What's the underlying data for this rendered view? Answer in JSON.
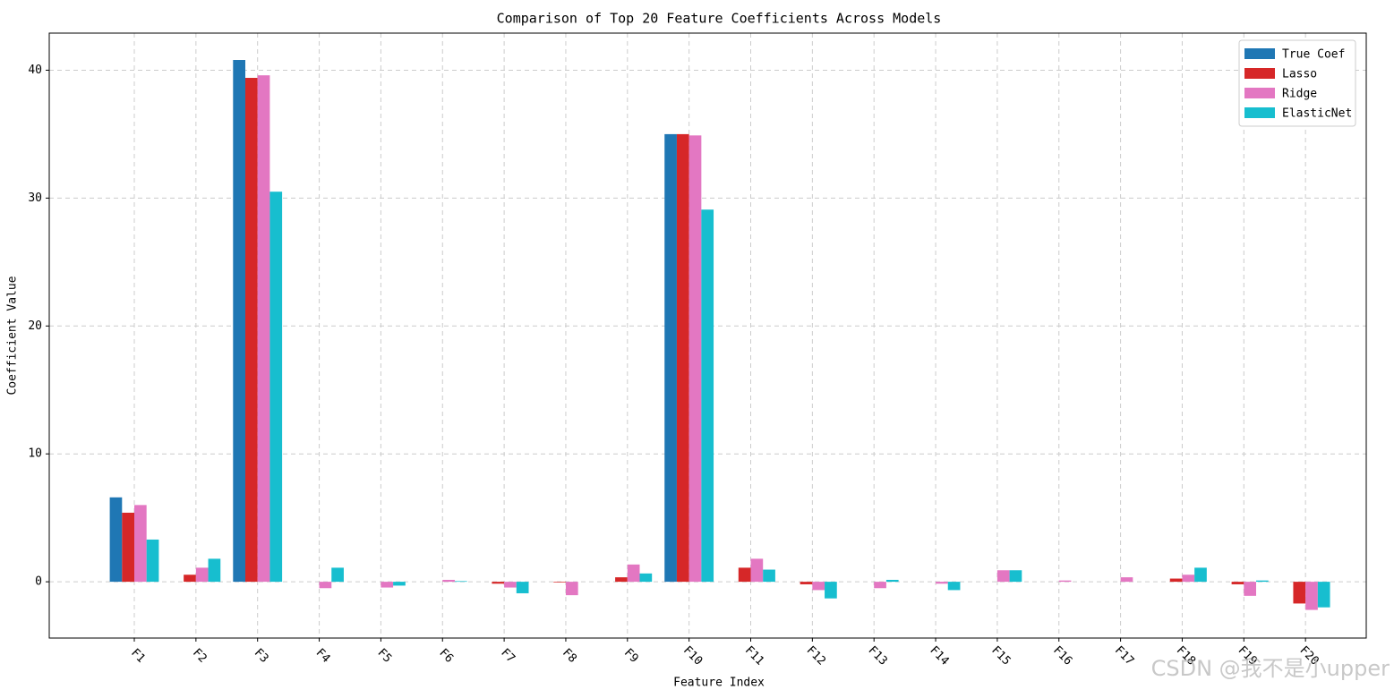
{
  "chart_data": {
    "type": "bar",
    "title": "Comparison of Top 20 Feature Coefficients Across Models",
    "xlabel": "Feature Index",
    "ylabel": "Coefficient Value",
    "categories": [
      "F1",
      "F2",
      "F3",
      "F4",
      "F5",
      "F6",
      "F7",
      "F8",
      "F9",
      "F10",
      "F11",
      "F12",
      "F13",
      "F14",
      "F15",
      "F16",
      "F17",
      "F18",
      "F19",
      "F20"
    ],
    "series": [
      {
        "name": "True Coef",
        "color": "#1f77b4",
        "values": [
          6.6,
          0,
          40.8,
          0,
          0,
          0,
          0,
          0,
          0,
          35.0,
          0,
          0,
          0,
          0,
          0,
          0,
          0,
          0,
          0,
          0
        ]
      },
      {
        "name": "Lasso",
        "color": "#d62728",
        "values": [
          5.4,
          0.55,
          39.4,
          0,
          0,
          0,
          -0.15,
          -0.05,
          0.35,
          35.0,
          1.1,
          -0.2,
          0,
          0,
          0,
          0,
          0,
          0.25,
          -0.2,
          -1.7
        ]
      },
      {
        "name": "Ridge",
        "color": "#e377c2",
        "values": [
          6.0,
          1.1,
          39.6,
          -0.5,
          -0.45,
          0.15,
          -0.45,
          -1.05,
          1.35,
          34.9,
          1.8,
          -0.65,
          -0.5,
          -0.15,
          0.9,
          0.1,
          0.35,
          0.55,
          -1.1,
          -2.2
        ]
      },
      {
        "name": "ElasticNet",
        "color": "#17becf",
        "values": [
          3.3,
          1.8,
          30.5,
          1.1,
          -0.3,
          0.05,
          -0.9,
          0,
          0.65,
          29.1,
          0.95,
          -1.3,
          0.15,
          -0.65,
          0.9,
          0,
          0,
          1.1,
          0.1,
          -2.0
        ]
      }
    ],
    "ylim": [
      -4.4,
      42.9
    ],
    "yticks": [
      0,
      10,
      20,
      30,
      40
    ],
    "grid": true,
    "legend": "upper right",
    "watermark": "CSDN @我不是小upper"
  }
}
